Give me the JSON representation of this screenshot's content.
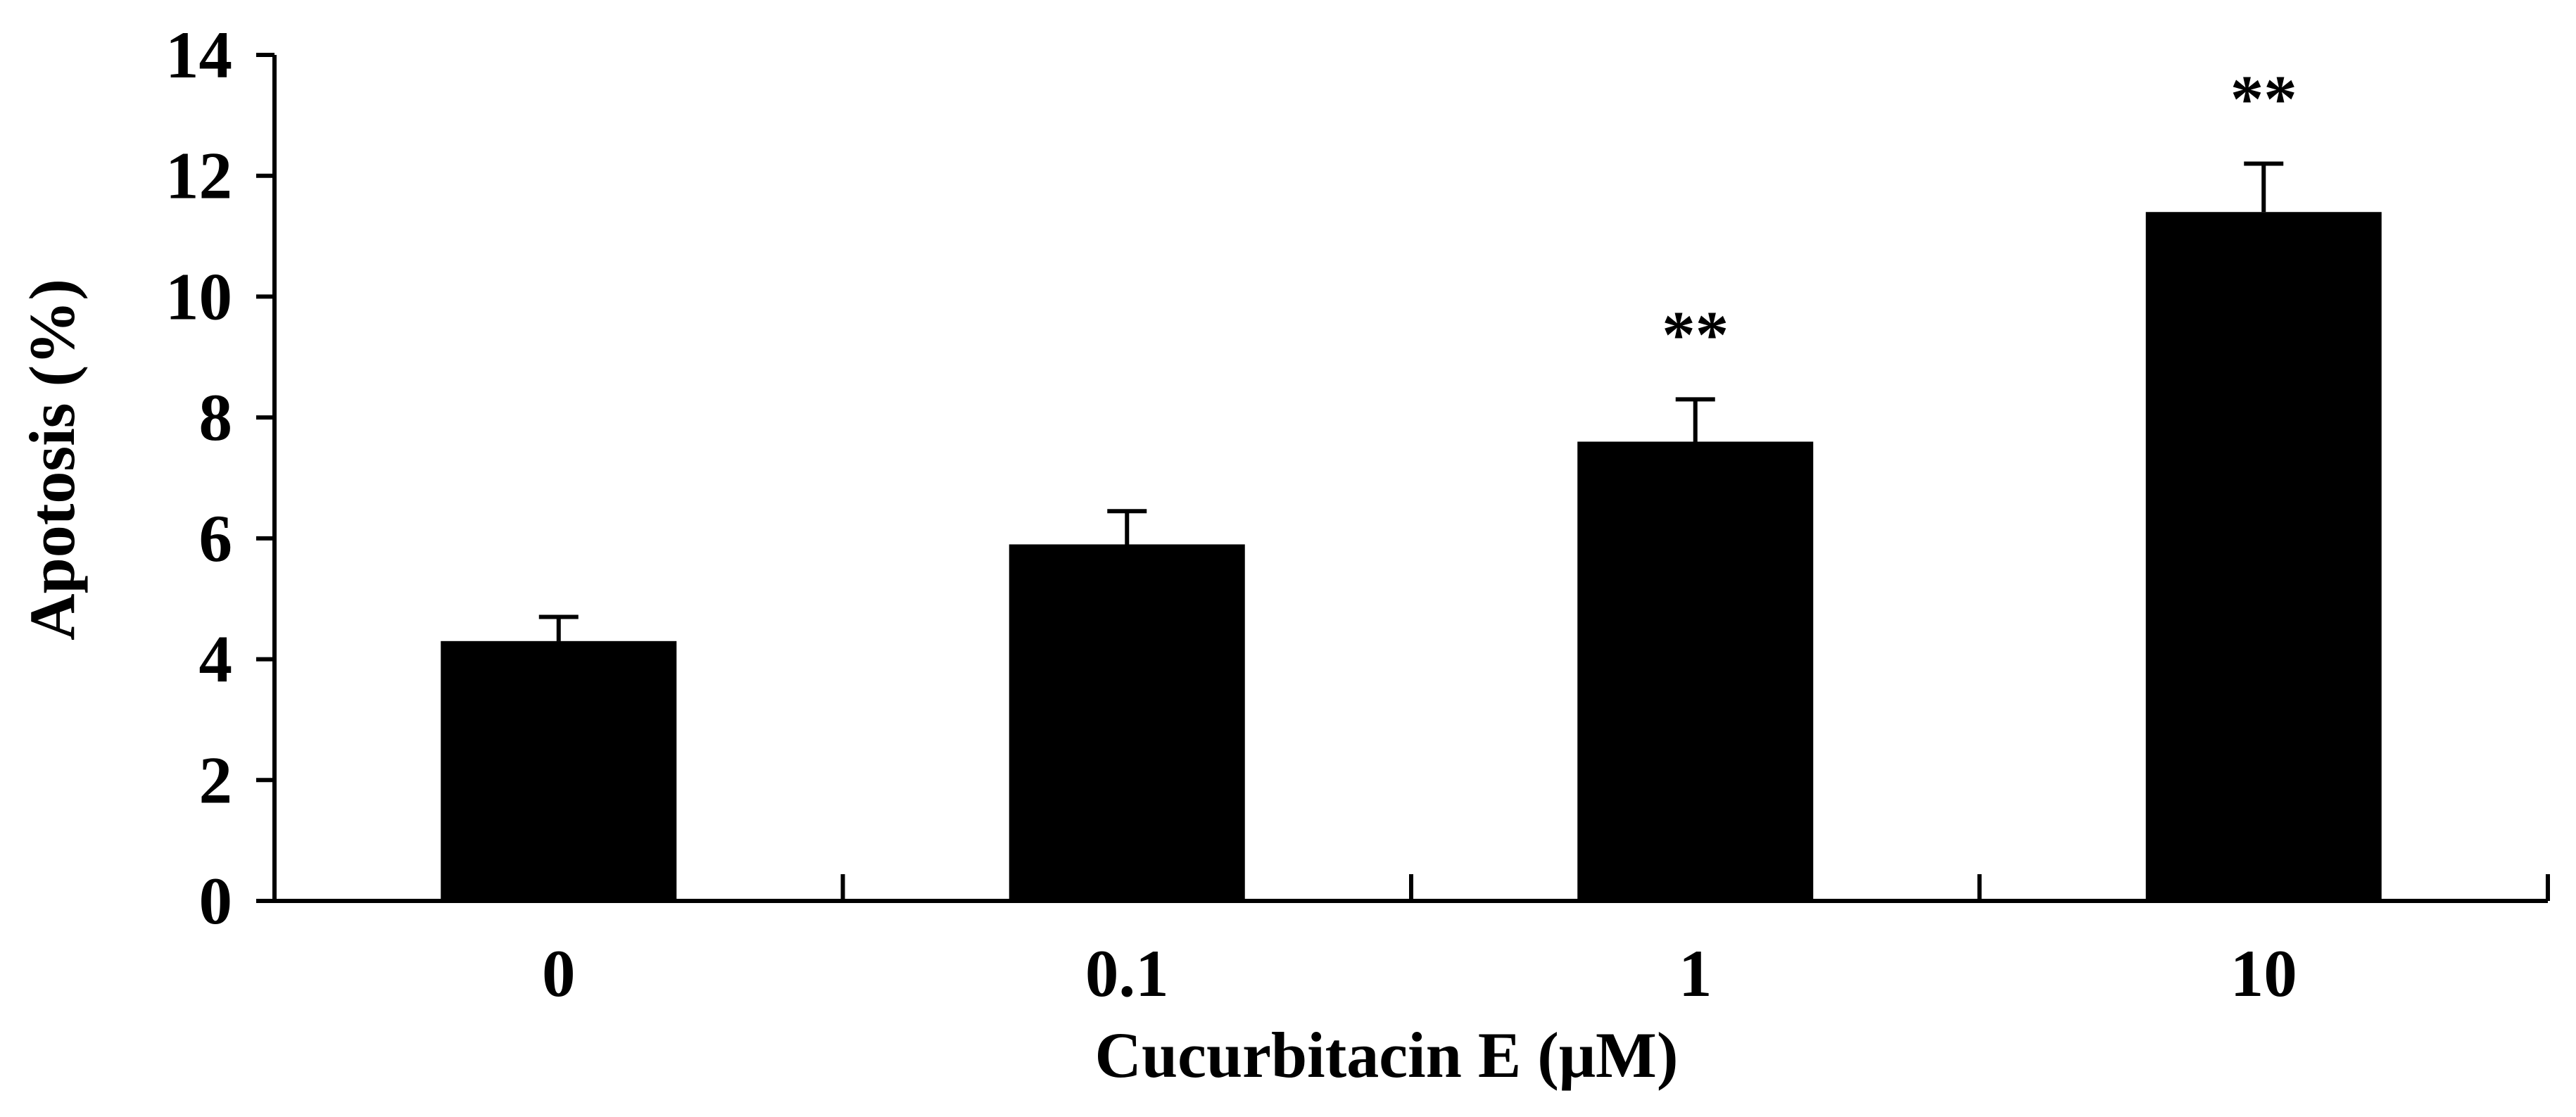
{
  "chart_data": {
    "type": "bar",
    "categories": [
      "0",
      "0.1",
      "1",
      "10"
    ],
    "values": [
      4.3,
      5.9,
      7.6,
      11.4
    ],
    "error_bars": [
      0.4,
      0.55,
      0.7,
      0.8
    ],
    "annotations": [
      "",
      "",
      "**",
      "**"
    ],
    "xlabel": "Cucurbitacin E (μM)",
    "ylabel": "Apotosis (%)",
    "ylim": [
      0,
      14
    ],
    "yticks": [
      "0",
      "2",
      "4",
      "6",
      "8",
      "10",
      "12",
      "14"
    ],
    "grid": false,
    "legend": "none",
    "bar_color": "#000000",
    "axis_color": "#000000"
  }
}
